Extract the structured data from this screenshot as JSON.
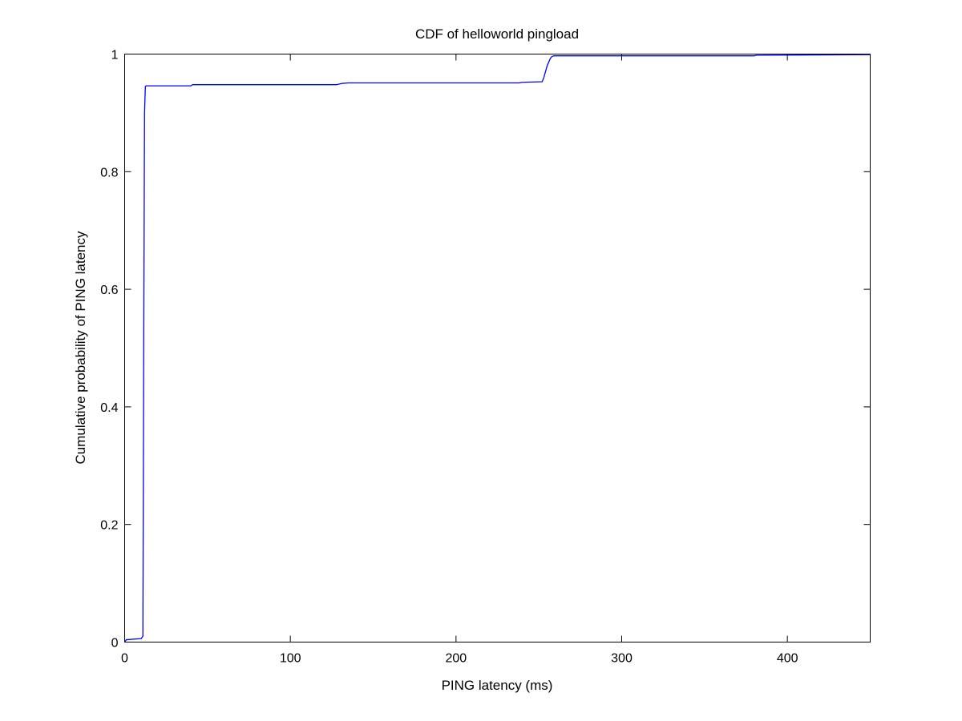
{
  "chart_data": {
    "type": "line",
    "title": "CDF of helloworld pingload",
    "xlabel": "PING latency (ms)",
    "ylabel": "Cumulative probability of PING latency",
    "xlim": [
      0,
      450
    ],
    "ylim": [
      0,
      1
    ],
    "xticks": [
      0,
      100,
      200,
      300,
      400
    ],
    "yticks": [
      0,
      0.2,
      0.4,
      0.6,
      0.8,
      1
    ],
    "xtick_labels": [
      "0",
      "100",
      "200",
      "300",
      "400"
    ],
    "ytick_labels": [
      "0",
      "0.2",
      "0.4",
      "0.6",
      "0.8",
      "1"
    ],
    "grid": false,
    "legend": "none",
    "series": [
      {
        "color": "#0000ff",
        "x": [
          0,
          1,
          10,
          11,
          11.5,
          12,
          12.5,
          13,
          40,
          41,
          128,
          131,
          135,
          238,
          240,
          252,
          253,
          255,
          257,
          258,
          259,
          260,
          380,
          381,
          450
        ],
        "y": [
          0,
          0.004,
          0.006,
          0.01,
          0.5,
          0.9,
          0.945,
          0.946,
          0.946,
          0.948,
          0.948,
          0.95,
          0.951,
          0.951,
          0.952,
          0.953,
          0.96,
          0.98,
          0.993,
          0.996,
          0.997,
          0.997,
          0.997,
          0.998,
          0.999
        ]
      }
    ]
  }
}
